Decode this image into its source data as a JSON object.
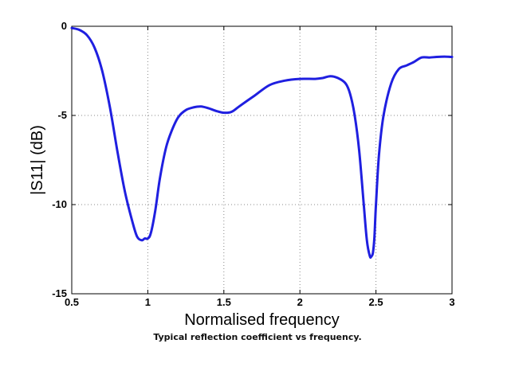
{
  "caption": "Typical reflection coefficient vs frequency.",
  "chart_data": {
    "type": "line",
    "xlabel": "Normalised frequency",
    "ylabel": "|S11| (dB)",
    "xlim": [
      0.5,
      3
    ],
    "ylim": [
      -15,
      0
    ],
    "xticks": [
      0.5,
      1,
      1.5,
      2,
      2.5,
      3
    ],
    "xtick_labels": [
      "0.5",
      "1",
      "1.5",
      "2",
      "2.5",
      "3"
    ],
    "yticks": [
      0,
      -5,
      -10,
      -15
    ],
    "ytick_labels": [
      "0",
      "-5",
      "-10",
      "-15"
    ],
    "grid": true,
    "line_color": "#1f1fe0",
    "series": [
      {
        "x": [
          0.5,
          0.55,
          0.6,
          0.65,
          0.7,
          0.75,
          0.8,
          0.85,
          0.9,
          0.93,
          0.96,
          0.98,
          1.0,
          1.02,
          1.05,
          1.08,
          1.12,
          1.16,
          1.2,
          1.25,
          1.3,
          1.35,
          1.4,
          1.45,
          1.5,
          1.55,
          1.6,
          1.7,
          1.8,
          1.9,
          2.0,
          2.1,
          2.15,
          2.2,
          2.25,
          2.3,
          2.33,
          2.36,
          2.39,
          2.42,
          2.44,
          2.46,
          2.47,
          2.48,
          2.49,
          2.5,
          2.52,
          2.55,
          2.6,
          2.65,
          2.7,
          2.75,
          2.8,
          2.85,
          2.9,
          2.95,
          3.0
        ],
        "y": [
          -0.1,
          -0.2,
          -0.5,
          -1.2,
          -2.5,
          -4.5,
          -7.0,
          -9.3,
          -11.0,
          -11.8,
          -12.0,
          -11.9,
          -11.9,
          -11.6,
          -10.3,
          -8.5,
          -6.8,
          -5.8,
          -5.1,
          -4.7,
          -4.55,
          -4.5,
          -4.6,
          -4.75,
          -4.85,
          -4.8,
          -4.5,
          -3.9,
          -3.3,
          -3.05,
          -2.95,
          -2.95,
          -2.9,
          -2.8,
          -2.9,
          -3.2,
          -3.8,
          -5.0,
          -7.0,
          -10.0,
          -12.0,
          -12.9,
          -12.9,
          -12.7,
          -11.8,
          -10.0,
          -7.2,
          -5.0,
          -3.2,
          -2.4,
          -2.2,
          -2.0,
          -1.75,
          -1.75,
          -1.72,
          -1.7,
          -1.72
        ]
      }
    ]
  }
}
